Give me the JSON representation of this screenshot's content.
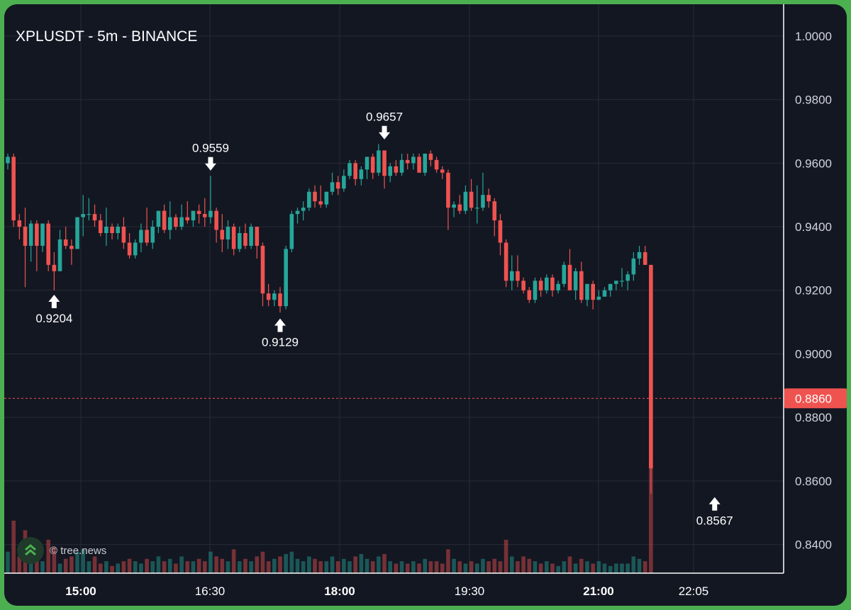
{
  "title": "XPLUSDT - 5m - BINANCE",
  "watermark": "© tree.news",
  "colors": {
    "up": "#26a69a",
    "down": "#ef5350",
    "background": "#131722",
    "grid": "#262b37",
    "text": "#d1d4dc"
  },
  "chart_data": {
    "type": "candlestick",
    "symbol": "XPLUSDT",
    "interval": "5m",
    "exchange": "BINANCE",
    "ylim": [
      0.831,
      1.01
    ],
    "y_ticks": [
      1.0,
      0.98,
      0.96,
      0.94,
      0.92,
      0.9,
      0.88,
      0.86,
      0.84
    ],
    "y_tick_labels": [
      "1.0000",
      "0.9800",
      "0.9600",
      "0.9400",
      "0.9200",
      "0.9000",
      "0.8800",
      "0.8600",
      "0.8400"
    ],
    "x_tick_labels": [
      {
        "label": "15:00",
        "bold": true
      },
      {
        "label": "16:30",
        "bold": false
      },
      {
        "label": "18:00",
        "bold": true
      },
      {
        "label": "19:30",
        "bold": false
      },
      {
        "label": "21:00",
        "bold": true
      },
      {
        "label": "22:05",
        "bold": false
      }
    ],
    "current_price": 0.886,
    "current_price_label": "0.8860",
    "annotations": [
      {
        "label": "0.9204",
        "price": 0.9204,
        "kind": "low",
        "candle": 8
      },
      {
        "label": "0.9559",
        "price": 0.9559,
        "kind": "high",
        "candle": 35
      },
      {
        "label": "0.9129",
        "price": 0.9129,
        "kind": "low",
        "candle": 47
      },
      {
        "label": "0.9657",
        "price": 0.9657,
        "kind": "high",
        "candle": 65
      },
      {
        "label": "0.8567",
        "price": 0.8567,
        "kind": "low",
        "candle": 122
      }
    ],
    "candles": [
      [
        0.96,
        0.963,
        0.958,
        0.962,
        18
      ],
      [
        0.962,
        0.963,
        0.94,
        0.942,
        44
      ],
      [
        0.942,
        0.944,
        0.936,
        0.94,
        14
      ],
      [
        0.94,
        0.946,
        0.921,
        0.934,
        36
      ],
      [
        0.934,
        0.942,
        0.929,
        0.941,
        30
      ],
      [
        0.941,
        0.942,
        0.926,
        0.934,
        20
      ],
      [
        0.934,
        0.941,
        0.932,
        0.941,
        10
      ],
      [
        0.941,
        0.942,
        0.926,
        0.928,
        28
      ],
      [
        0.928,
        0.932,
        0.92,
        0.926,
        22
      ],
      [
        0.926,
        0.939,
        0.926,
        0.936,
        8
      ],
      [
        0.936,
        0.94,
        0.933,
        0.934,
        12
      ],
      [
        0.934,
        0.936,
        0.928,
        0.933,
        14
      ],
      [
        0.933,
        0.943,
        0.933,
        0.943,
        18
      ],
      [
        0.943,
        0.95,
        0.937,
        0.944,
        20
      ],
      [
        0.944,
        0.949,
        0.942,
        0.944,
        10
      ],
      [
        0.944,
        0.947,
        0.94,
        0.942,
        14
      ],
      [
        0.942,
        0.944,
        0.937,
        0.938,
        8
      ],
      [
        0.938,
        0.946,
        0.934,
        0.94,
        10
      ],
      [
        0.94,
        0.941,
        0.936,
        0.938,
        6
      ],
      [
        0.938,
        0.941,
        0.936,
        0.94,
        8
      ],
      [
        0.94,
        0.943,
        0.933,
        0.935,
        10
      ],
      [
        0.935,
        0.938,
        0.93,
        0.931,
        12
      ],
      [
        0.931,
        0.936,
        0.93,
        0.935,
        10
      ],
      [
        0.935,
        0.941,
        0.932,
        0.939,
        8
      ],
      [
        0.939,
        0.946,
        0.934,
        0.935,
        12
      ],
      [
        0.935,
        0.942,
        0.933,
        0.94,
        10
      ],
      [
        0.94,
        0.945,
        0.938,
        0.945,
        14
      ],
      [
        0.945,
        0.947,
        0.938,
        0.939,
        10
      ],
      [
        0.939,
        0.948,
        0.936,
        0.943,
        12
      ],
      [
        0.943,
        0.944,
        0.939,
        0.94,
        8
      ],
      [
        0.94,
        0.947,
        0.939,
        0.943,
        14
      ],
      [
        0.943,
        0.948,
        0.941,
        0.942,
        10
      ],
      [
        0.942,
        0.945,
        0.94,
        0.945,
        10
      ],
      [
        0.945,
        0.947,
        0.941,
        0.944,
        12
      ],
      [
        0.944,
        0.949,
        0.94,
        0.943,
        10
      ],
      [
        0.943,
        0.956,
        0.941,
        0.945,
        18
      ],
      [
        0.945,
        0.946,
        0.935,
        0.939,
        14
      ],
      [
        0.939,
        0.944,
        0.932,
        0.936,
        12
      ],
      [
        0.936,
        0.942,
        0.933,
        0.94,
        10
      ],
      [
        0.94,
        0.941,
        0.931,
        0.933,
        20
      ],
      [
        0.933,
        0.94,
        0.932,
        0.938,
        10
      ],
      [
        0.938,
        0.941,
        0.933,
        0.934,
        12
      ],
      [
        0.934,
        0.941,
        0.933,
        0.94,
        10
      ],
      [
        0.94,
        0.94,
        0.93,
        0.934,
        14
      ],
      [
        0.934,
        0.935,
        0.915,
        0.919,
        18
      ],
      [
        0.919,
        0.922,
        0.915,
        0.917,
        10
      ],
      [
        0.917,
        0.92,
        0.915,
        0.919,
        12
      ],
      [
        0.919,
        0.921,
        0.913,
        0.915,
        14
      ],
      [
        0.915,
        0.934,
        0.914,
        0.933,
        16
      ],
      [
        0.933,
        0.945,
        0.932,
        0.944,
        18
      ],
      [
        0.944,
        0.946,
        0.941,
        0.945,
        12
      ],
      [
        0.945,
        0.948,
        0.942,
        0.946,
        10
      ],
      [
        0.946,
        0.952,
        0.945,
        0.951,
        14
      ],
      [
        0.951,
        0.953,
        0.946,
        0.948,
        12
      ],
      [
        0.948,
        0.953,
        0.946,
        0.947,
        10
      ],
      [
        0.947,
        0.951,
        0.946,
        0.951,
        10
      ],
      [
        0.951,
        0.957,
        0.95,
        0.954,
        14
      ],
      [
        0.954,
        0.956,
        0.95,
        0.952,
        10
      ],
      [
        0.952,
        0.958,
        0.951,
        0.956,
        12
      ],
      [
        0.956,
        0.961,
        0.955,
        0.96,
        10
      ],
      [
        0.96,
        0.961,
        0.953,
        0.955,
        14
      ],
      [
        0.955,
        0.959,
        0.953,
        0.958,
        16
      ],
      [
        0.958,
        0.962,
        0.955,
        0.962,
        12
      ],
      [
        0.962,
        0.963,
        0.955,
        0.957,
        10
      ],
      [
        0.957,
        0.966,
        0.956,
        0.964,
        14
      ],
      [
        0.964,
        0.964,
        0.952,
        0.956,
        16
      ],
      [
        0.956,
        0.96,
        0.954,
        0.959,
        10
      ],
      [
        0.959,
        0.961,
        0.956,
        0.957,
        8
      ],
      [
        0.957,
        0.963,
        0.956,
        0.961,
        10
      ],
      [
        0.961,
        0.963,
        0.958,
        0.96,
        8
      ],
      [
        0.96,
        0.963,
        0.958,
        0.962,
        10
      ],
      [
        0.962,
        0.963,
        0.957,
        0.957,
        8
      ],
      [
        0.957,
        0.963,
        0.956,
        0.963,
        12
      ],
      [
        0.963,
        0.964,
        0.959,
        0.961,
        10
      ],
      [
        0.961,
        0.962,
        0.957,
        0.958,
        10
      ],
      [
        0.958,
        0.959,
        0.955,
        0.957,
        8
      ],
      [
        0.957,
        0.958,
        0.939,
        0.946,
        20
      ],
      [
        0.946,
        0.948,
        0.943,
        0.947,
        12
      ],
      [
        0.947,
        0.95,
        0.944,
        0.945,
        10
      ],
      [
        0.945,
        0.953,
        0.944,
        0.951,
        8
      ],
      [
        0.951,
        0.955,
        0.945,
        0.946,
        10
      ],
      [
        0.946,
        0.953,
        0.941,
        0.946,
        8
      ],
      [
        0.946,
        0.957,
        0.945,
        0.95,
        12
      ],
      [
        0.95,
        0.952,
        0.946,
        0.948,
        10
      ],
      [
        0.948,
        0.949,
        0.937,
        0.942,
        12
      ],
      [
        0.942,
        0.944,
        0.931,
        0.935,
        10
      ],
      [
        0.935,
        0.936,
        0.921,
        0.923,
        28
      ],
      [
        0.923,
        0.931,
        0.92,
        0.926,
        14
      ],
      [
        0.926,
        0.931,
        0.921,
        0.923,
        10
      ],
      [
        0.923,
        0.924,
        0.919,
        0.92,
        14
      ],
      [
        0.92,
        0.921,
        0.916,
        0.917,
        12
      ],
      [
        0.917,
        0.924,
        0.916,
        0.923,
        10
      ],
      [
        0.923,
        0.924,
        0.918,
        0.92,
        8
      ],
      [
        0.92,
        0.925,
        0.919,
        0.924,
        10
      ],
      [
        0.924,
        0.925,
        0.918,
        0.92,
        8
      ],
      [
        0.92,
        0.923,
        0.919,
        0.922,
        6
      ],
      [
        0.922,
        0.929,
        0.921,
        0.928,
        10
      ],
      [
        0.928,
        0.933,
        0.92,
        0.92,
        14
      ],
      [
        0.92,
        0.927,
        0.917,
        0.926,
        8
      ],
      [
        0.926,
        0.929,
        0.916,
        0.917,
        12
      ],
      [
        0.917,
        0.922,
        0.915,
        0.922,
        10
      ],
      [
        0.922,
        0.923,
        0.914,
        0.917,
        8
      ],
      [
        0.917,
        0.92,
        0.917,
        0.918,
        10
      ],
      [
        0.918,
        0.921,
        0.918,
        0.92,
        8
      ],
      [
        0.92,
        0.922,
        0.918,
        0.922,
        6
      ],
      [
        0.922,
        0.923,
        0.92,
        0.923,
        8
      ],
      [
        0.923,
        0.927,
        0.921,
        0.923,
        8
      ],
      [
        0.923,
        0.926,
        0.92,
        0.925,
        8
      ],
      [
        0.925,
        0.932,
        0.923,
        0.93,
        14
      ],
      [
        0.93,
        0.934,
        0.928,
        0.932,
        12
      ],
      [
        0.932,
        0.934,
        0.928,
        0.928,
        10
      ],
      [
        0.928,
        0.928,
        0.856,
        0.864,
        95
      ]
    ]
  }
}
